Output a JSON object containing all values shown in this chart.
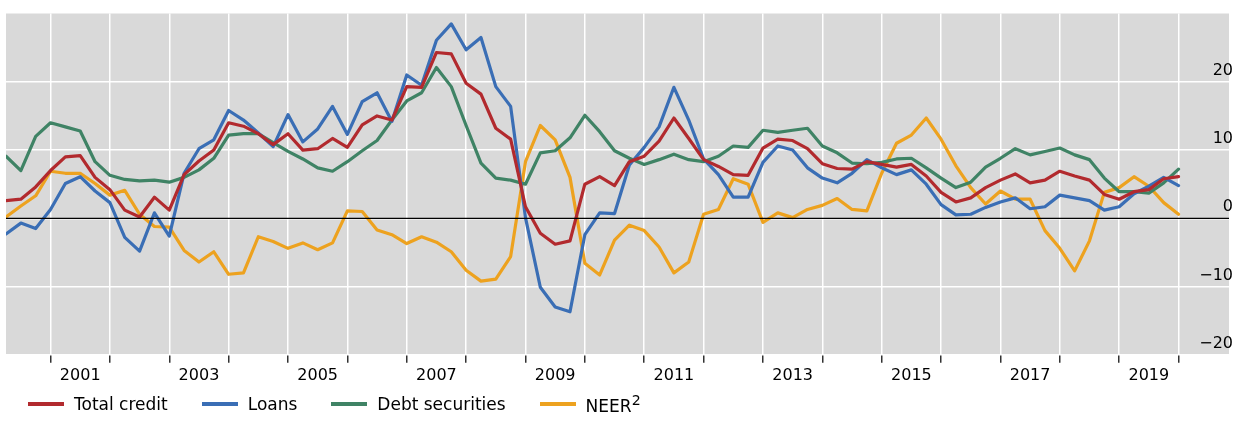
{
  "chart_data": {
    "type": "line",
    "x": [
      2000.25,
      2000.5,
      2000.75,
      2001,
      2001.25,
      2001.5,
      2001.75,
      2002,
      2002.25,
      2002.5,
      2002.75,
      2003,
      2003.25,
      2003.5,
      2003.75,
      2004,
      2004.25,
      2004.5,
      2004.75,
      2005,
      2005.25,
      2005.5,
      2005.75,
      2006,
      2006.25,
      2006.5,
      2006.75,
      2007,
      2007.25,
      2007.5,
      2007.75,
      2008,
      2008.25,
      2008.5,
      2008.75,
      2009,
      2009.25,
      2009.5,
      2009.75,
      2010,
      2010.25,
      2010.5,
      2010.75,
      2011,
      2011.25,
      2011.5,
      2011.75,
      2012,
      2012.25,
      2012.5,
      2012.75,
      2013,
      2013.25,
      2013.5,
      2013.75,
      2014,
      2014.25,
      2014.5,
      2014.75,
      2015,
      2015.25,
      2015.5,
      2015.75,
      2016,
      2016.25,
      2016.5,
      2016.75,
      2017,
      2017.25,
      2017.5,
      2017.75,
      2018,
      2018.25,
      2018.5,
      2018.75,
      2019,
      2019.25,
      2019.5,
      2019.75,
      2020
    ],
    "series": [
      {
        "name": "Total credit",
        "color": "#b22a2e",
        "values": [
          2.6,
          2.8,
          4.6,
          7.0,
          9.0,
          9.2,
          6.0,
          4.2,
          1.2,
          0.2,
          3.1,
          1.2,
          6.4,
          8.4,
          10.0,
          14.0,
          13.5,
          12.4,
          10.8,
          12.4,
          10.0,
          10.2,
          11.7,
          10.4,
          13.7,
          15.0,
          14.4,
          19.3,
          19.2,
          24.3,
          24.1,
          19.8,
          18.2,
          13.2,
          11.6,
          1.7,
          -2.2,
          -3.8,
          -3.3,
          5.0,
          6.1,
          4.8,
          8.3,
          9.1,
          11.3,
          14.7,
          11.7,
          8.6,
          7.6,
          6.4,
          6.3,
          10.3,
          11.6,
          11.4,
          10.2,
          8.0,
          7.3,
          7.2,
          8.3,
          7.9,
          7.5,
          7.9,
          6.2,
          3.8,
          2.4,
          3.0,
          4.5,
          5.6,
          6.5,
          5.2,
          5.6,
          6.9,
          6.2,
          5.6,
          3.5,
          2.8,
          3.9,
          4.2,
          5.8,
          6.1
        ]
      },
      {
        "name": "Loans",
        "color": "#3a6eb5",
        "values": [
          -2.3,
          -0.7,
          -1.5,
          1.3,
          5.1,
          6.1,
          4.0,
          2.3,
          -2.8,
          -4.8,
          0.8,
          -2.6,
          6.6,
          10.2,
          11.5,
          15.8,
          14.4,
          12.5,
          10.5,
          15.2,
          11.2,
          13.1,
          16.4,
          12.3,
          17.1,
          18.4,
          14.2,
          21.0,
          19.5,
          26.1,
          28.5,
          24.7,
          26.5,
          19.3,
          16.4,
          0.1,
          -10.1,
          -13.0,
          -13.7,
          -2.4,
          0.8,
          0.7,
          7.8,
          10.4,
          13.4,
          19.2,
          14.4,
          8.7,
          6.4,
          3.1,
          3.1,
          8.2,
          10.6,
          10.0,
          7.4,
          5.9,
          5.2,
          6.6,
          8.6,
          7.4,
          6.4,
          7.1,
          5.0,
          2.0,
          0.5,
          0.6,
          1.6,
          2.4,
          3.0,
          1.4,
          1.7,
          3.4,
          3.0,
          2.6,
          1.2,
          1.7,
          3.6,
          4.7,
          6.0,
          4.8
        ]
      },
      {
        "name": "Debt securities",
        "color": "#3f8365",
        "values": [
          9.1,
          7.0,
          12.0,
          14.0,
          13.4,
          12.8,
          8.3,
          6.3,
          5.7,
          5.5,
          5.6,
          5.3,
          6.0,
          7.1,
          8.8,
          12.2,
          12.4,
          12.4,
          11.1,
          9.8,
          8.7,
          7.4,
          6.9,
          8.3,
          9.9,
          11.4,
          14.4,
          17.2,
          18.4,
          22.1,
          19.3,
          13.6,
          8.1,
          5.9,
          5.6,
          5.0,
          9.6,
          9.9,
          11.8,
          15.1,
          12.7,
          9.9,
          8.8,
          7.9,
          8.6,
          9.4,
          8.6,
          8.3,
          9.1,
          10.6,
          10.4,
          12.9,
          12.6,
          12.9,
          13.2,
          10.6,
          9.6,
          8.1,
          8.0,
          8.2,
          8.7,
          8.8,
          7.4,
          5.9,
          4.5,
          5.3,
          7.5,
          8.8,
          10.2,
          9.3,
          9.8,
          10.3,
          9.3,
          8.6,
          5.9,
          3.9,
          3.9,
          3.7,
          5.2,
          7.2
        ]
      },
      {
        "name": "NEER$^{2}$",
        "color": "#eda21f",
        "values": [
          0.2,
          1.8,
          3.3,
          6.9,
          6.6,
          6.6,
          5.1,
          3.4,
          4.1,
          0.6,
          -1.2,
          -1.3,
          -4.7,
          -6.4,
          -4.9,
          -8.2,
          -8.0,
          -2.7,
          -3.4,
          -4.4,
          -3.6,
          -4.6,
          -3.6,
          1.1,
          1.0,
          -1.7,
          -2.4,
          -3.7,
          -2.7,
          -3.5,
          -4.9,
          -7.6,
          -9.2,
          -8.9,
          -5.6,
          8.3,
          13.6,
          11.5,
          6.0,
          -6.6,
          -8.3,
          -3.2,
          -1.0,
          -1.8,
          -4.2,
          -8.0,
          -6.4,
          0.6,
          1.3,
          5.8,
          5.0,
          -0.6,
          0.8,
          0.1,
          1.3,
          1.9,
          2.9,
          1.3,
          1.1,
          6.6,
          11.0,
          12.2,
          14.7,
          11.6,
          7.7,
          4.5,
          2.1,
          4.0,
          2.8,
          2.8,
          -1.8,
          -4.4,
          -7.7,
          -3.3,
          3.8,
          4.5,
          6.1,
          4.7,
          2.3,
          0.6
        ]
      }
    ],
    "xlim": [
      2000.25,
      2020.85
    ],
    "xticks": [
      {
        "value": 2001,
        "label": null
      },
      {
        "value": 2001.5,
        "label": "2001"
      },
      {
        "value": 2002,
        "label": null
      },
      {
        "value": 2003,
        "label": null
      },
      {
        "value": 2003.5,
        "label": "2003"
      },
      {
        "value": 2004,
        "label": null
      },
      {
        "value": 2005,
        "label": null
      },
      {
        "value": 2005.5,
        "label": "2005"
      },
      {
        "value": 2006,
        "label": null
      },
      {
        "value": 2007,
        "label": null
      },
      {
        "value": 2007.5,
        "label": "2007"
      },
      {
        "value": 2008,
        "label": null
      },
      {
        "value": 2009,
        "label": null
      },
      {
        "value": 2009.5,
        "label": "2009"
      },
      {
        "value": 2010,
        "label": null
      },
      {
        "value": 2011,
        "label": null
      },
      {
        "value": 2011.5,
        "label": "2011"
      },
      {
        "value": 2012,
        "label": null
      },
      {
        "value": 2013,
        "label": null
      },
      {
        "value": 2013.5,
        "label": "2013"
      },
      {
        "value": 2014,
        "label": null
      },
      {
        "value": 2015,
        "label": null
      },
      {
        "value": 2015.5,
        "label": "2015"
      },
      {
        "value": 2016,
        "label": null
      },
      {
        "value": 2017,
        "label": null
      },
      {
        "value": 2017.5,
        "label": "2017"
      },
      {
        "value": 2018,
        "label": null
      },
      {
        "value": 2019,
        "label": null
      },
      {
        "value": 2019.5,
        "label": "2019"
      },
      {
        "value": 2020,
        "label": null
      }
    ],
    "ylim": [
      -20,
      30
    ],
    "yticks": [
      {
        "value": -20,
        "label": "−20"
      },
      {
        "value": -10,
        "label": "−10"
      },
      0,
      10,
      20
    ],
    "ref_lines": [
      {
        "axis": "y",
        "value": 0,
        "color": "#000000"
      }
    ],
    "grid": true,
    "legend": "bottom",
    "marker": "none",
    "line_style": "solid"
  }
}
